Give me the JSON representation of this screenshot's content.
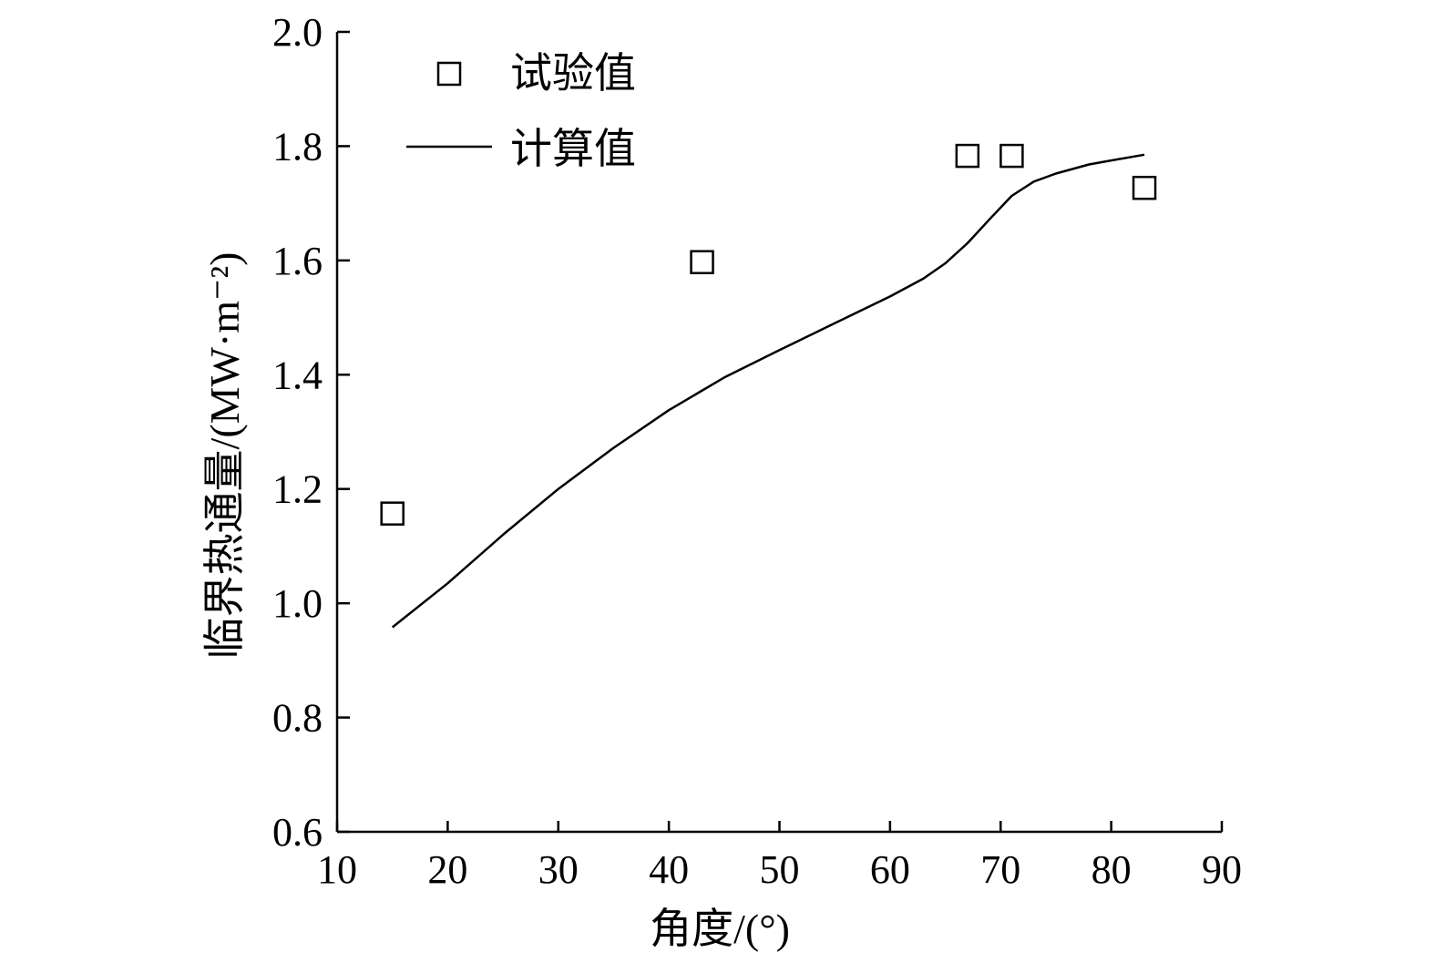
{
  "chart_data": {
    "type": "line",
    "title": "",
    "xlabel": "角度/(°)",
    "ylabel": "临界热通量/(MW·m⁻²)",
    "xlim": [
      10,
      90
    ],
    "ylim": [
      0.6,
      2.0
    ],
    "xticks": [
      10,
      20,
      30,
      40,
      50,
      60,
      70,
      80,
      90
    ],
    "yticks": [
      0.6,
      0.8,
      1.0,
      1.2,
      1.4,
      1.6,
      1.8,
      2.0
    ],
    "xtick_labels": [
      "10",
      "20",
      "30",
      "40",
      "50",
      "60",
      "70",
      "80",
      "90"
    ],
    "ytick_labels": [
      "0.6",
      "0.8",
      "1.0",
      "1.2",
      "1.4",
      "1.6",
      "1.8",
      "2.0"
    ],
    "grid": false,
    "legend_position": "top-left",
    "series": [
      {
        "name": "试验值",
        "kind": "scatter",
        "marker": "open-square",
        "x": [
          15,
          43,
          67,
          71,
          83
        ],
        "y": [
          1.157,
          1.597,
          1.783,
          1.783,
          1.727
        ]
      },
      {
        "name": "计算值",
        "kind": "line",
        "x": [
          15,
          20,
          25,
          30,
          35,
          40,
          45,
          50,
          55,
          60,
          63,
          65,
          67,
          69,
          71,
          73,
          75,
          78,
          80,
          83
        ],
        "y": [
          0.958,
          1.035,
          1.12,
          1.2,
          1.272,
          1.338,
          1.395,
          1.443,
          1.49,
          1.537,
          1.568,
          1.595,
          1.63,
          1.672,
          1.713,
          1.738,
          1.752,
          1.768,
          1.775,
          1.785
        ]
      }
    ]
  }
}
